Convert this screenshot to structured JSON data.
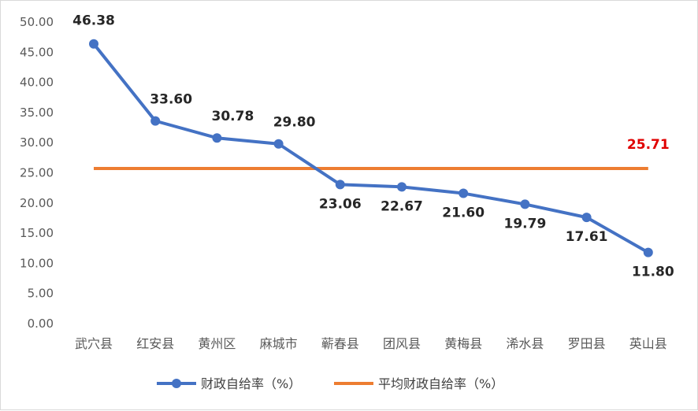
{
  "chart_data": {
    "type": "line",
    "categories": [
      "武穴县",
      "红安县",
      "黄州区",
      "麻城市",
      "蕲春县",
      "团风县",
      "黄梅县",
      "浠水县",
      "罗田县",
      "英山县"
    ],
    "series": [
      {
        "name": "财政自给率（%）",
        "values": [
          46.38,
          33.6,
          30.78,
          29.8,
          23.06,
          22.67,
          21.6,
          19.79,
          17.61,
          11.8
        ],
        "labels": [
          "46.38",
          "33.60",
          "30.78",
          "29.80",
          "23.06",
          "22.67",
          "21.60",
          "19.79",
          "17.61",
          "11.80"
        ],
        "color": "#4472c4",
        "marker": "circle"
      },
      {
        "name": "平均财政自给率（%）",
        "values": [
          25.71,
          25.71,
          25.71,
          25.71,
          25.71,
          25.71,
          25.71,
          25.71,
          25.71,
          25.71
        ],
        "label": "25.71",
        "label_color": "#e00000",
        "color": "#ed7d31"
      }
    ],
    "y_ticks": [
      "0.00",
      "5.00",
      "10.00",
      "15.00",
      "20.00",
      "25.00",
      "30.00",
      "35.00",
      "40.00",
      "45.00",
      "50.00"
    ],
    "ylim": [
      0,
      50
    ],
    "grid": false,
    "legend": "bottom"
  }
}
